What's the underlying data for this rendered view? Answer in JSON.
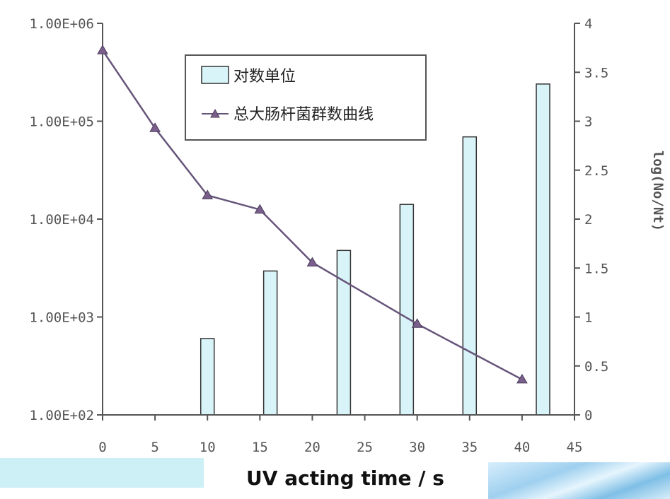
{
  "chart_data": {
    "type": "bar+line",
    "x_ticks": [
      "0",
      "5",
      "10",
      "15",
      "20",
      "25",
      "30",
      "35",
      "40",
      "45"
    ],
    "xlim": [
      0,
      45
    ],
    "left_axis": {
      "scale": "log",
      "ylim": [
        100,
        1000000
      ],
      "ticks": [
        "1.00E+02",
        "1.00E+03",
        "1.00E+04",
        "1.00E+05",
        "1.00E+06"
      ]
    },
    "right_axis": {
      "ylim": [
        0,
        4
      ],
      "ticks": [
        "0",
        "0.5",
        "1",
        "1.5",
        "2",
        "2.5",
        "3",
        "3.5",
        "4"
      ],
      "label": "log(No/Nt)"
    },
    "series": [
      {
        "name": "对数单位",
        "type": "bar",
        "axis": "right",
        "color": "#d9f4f8",
        "x": [
          10,
          16,
          23,
          29,
          35,
          42
        ],
        "values": [
          0.78,
          1.47,
          1.68,
          2.15,
          2.84,
          3.38
        ]
      },
      {
        "name": "总大肠杆菌群数曲线",
        "type": "line",
        "axis": "left",
        "color": "#66557a",
        "marker": "triangle",
        "x": [
          0,
          5,
          10,
          15,
          20,
          30,
          40
        ],
        "values": [
          530000,
          85000,
          17500,
          12500,
          3600,
          850,
          230
        ]
      }
    ],
    "legend": "top-center",
    "grid": false
  },
  "caption": "UV acting time / s"
}
